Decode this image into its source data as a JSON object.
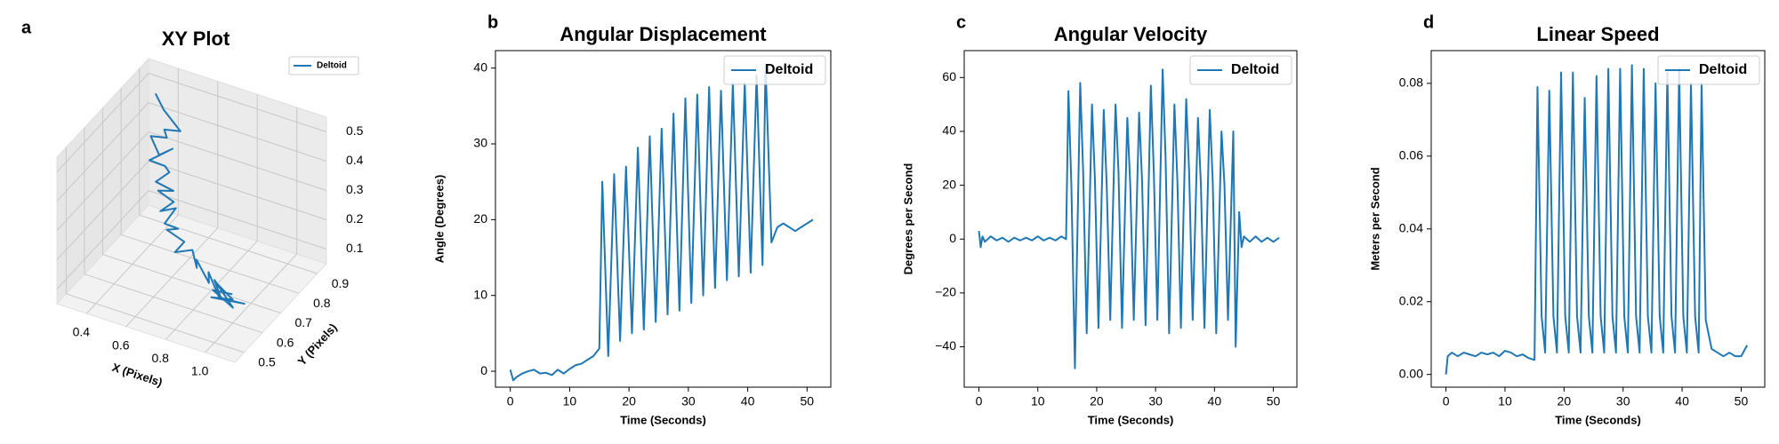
{
  "chart_data": [
    {
      "type": "line3d",
      "panel_label": "a",
      "title": "XY Plot",
      "x_label": "X (Pixels)",
      "y_label": "Y (Pixels)",
      "legend": "upper right",
      "xlim": [
        0.25,
        1.15
      ],
      "ylim": [
        0.45,
        0.95
      ],
      "zlim": [
        0.05,
        0.55
      ],
      "xticks": [
        0.4,
        0.6,
        0.8,
        {
          "value": 1.0,
          "label": "1.0"
        }
      ],
      "yticks": [
        0.5,
        0.6,
        0.7,
        0.8,
        0.9
      ],
      "zticks": [
        0.1,
        0.2,
        0.3,
        0.4,
        0.5
      ],
      "series": [
        {
          "name": "Deltoid",
          "color": "#1f77b4",
          "x": [
            0.35,
            0.42,
            0.55,
            0.45,
            0.5,
            0.4,
            0.48,
            0.52,
            0.44,
            0.5,
            0.55,
            0.5,
            0.58,
            0.53,
            0.6,
            0.56,
            0.62,
            0.6,
            0.65,
            0.62,
            0.7,
            0.68,
            0.75,
            0.8,
            0.78,
            0.88,
            0.85,
            0.95,
            0.9,
            1.0,
            0.92,
            1.05,
            0.95,
            0.88,
            1.02,
            0.9,
            0.98
          ],
          "y": [
            0.88,
            0.85,
            0.8,
            0.82,
            0.78,
            0.8,
            0.76,
            0.79,
            0.75,
            0.77,
            0.74,
            0.72,
            0.73,
            0.7,
            0.71,
            0.68,
            0.7,
            0.66,
            0.68,
            0.65,
            0.66,
            0.63,
            0.65,
            0.62,
            0.64,
            0.6,
            0.63,
            0.58,
            0.62,
            0.6,
            0.57,
            0.61,
            0.59,
            0.63,
            0.58,
            0.6,
            0.62
          ],
          "z": [
            0.5,
            0.48,
            0.47,
            0.44,
            0.45,
            0.42,
            0.4,
            0.41,
            0.38,
            0.36,
            0.37,
            0.34,
            0.32,
            0.33,
            0.3,
            0.28,
            0.29,
            0.26,
            0.24,
            0.25,
            0.22,
            0.2,
            0.21,
            0.18,
            0.19,
            0.16,
            0.17,
            0.14,
            0.15,
            0.13,
            0.14,
            0.12,
            0.13,
            0.15,
            0.12,
            0.14,
            0.13
          ]
        }
      ]
    },
    {
      "type": "line",
      "panel_label": "b",
      "title": "Angular Displacement",
      "x_label": "Time (Seconds)",
      "y_label": "Angle (Degrees)",
      "legend": "upper right",
      "xlim": [
        -2.5,
        54
      ],
      "ylim": [
        -2.1,
        42.3
      ],
      "xticks": [
        0,
        10,
        20,
        30,
        40,
        50
      ],
      "yticks": [
        0,
        10,
        20,
        30,
        40
      ],
      "x": [
        0,
        0.5,
        1,
        2,
        3,
        4,
        5,
        6,
        7,
        8,
        9,
        10,
        11,
        12,
        13,
        14,
        15,
        15.5,
        16.5,
        17.5,
        18.5,
        19.5,
        20.5,
        21.5,
        22.5,
        23.5,
        24.5,
        25.5,
        26.5,
        27.5,
        28.5,
        29.5,
        30.5,
        31.5,
        32.5,
        33.5,
        34.5,
        35.5,
        36.5,
        37.5,
        38.5,
        39.5,
        40.5,
        41.5,
        42.5,
        43,
        44,
        45,
        46,
        47,
        48,
        49,
        50,
        51
      ],
      "series": [
        {
          "name": "Deltoid",
          "color": "#1f77b4",
          "values": [
            0.2,
            -1.2,
            -0.8,
            -0.3,
            0,
            0.2,
            -0.3,
            -0.2,
            -0.5,
            0.2,
            -0.3,
            0.3,
            0.8,
            1,
            1.5,
            2,
            3,
            25,
            2,
            26,
            4,
            27,
            5,
            29.5,
            5.5,
            31,
            6.5,
            32,
            7.5,
            34,
            8,
            36,
            9,
            36.5,
            10,
            37.5,
            11,
            37,
            12,
            38,
            12.5,
            38,
            13,
            39,
            14,
            40.5,
            17,
            19,
            19.5,
            19,
            18.5,
            19,
            19.5,
            20
          ]
        }
      ]
    },
    {
      "type": "line",
      "panel_label": "c",
      "title": "Angular Velocity",
      "x_label": "Time (Seconds)",
      "y_label": "Degrees per Second",
      "legend": "upper right",
      "xlim": [
        -2.5,
        54
      ],
      "ylim": [
        -55,
        70
      ],
      "xticks": [
        0,
        10,
        20,
        30,
        40,
        50
      ],
      "yticks": [
        {
          "value": -40,
          "label": "−40"
        },
        {
          "value": -20,
          "label": "−20"
        },
        0,
        20,
        40,
        60
      ],
      "x": [
        0,
        0.3,
        0.6,
        1,
        2,
        3,
        4,
        5,
        6,
        7,
        8,
        9,
        10,
        11,
        12,
        13,
        14,
        14.8,
        15.2,
        15.7,
        16.3,
        17.2,
        17.7,
        18.3,
        19.2,
        19.7,
        20.3,
        21.2,
        21.7,
        22.3,
        23.2,
        23.7,
        24.3,
        25.2,
        25.7,
        26.3,
        27.2,
        27.7,
        28.3,
        29.2,
        29.7,
        30.3,
        31.2,
        31.7,
        32.3,
        33.2,
        33.7,
        34.3,
        35.2,
        35.7,
        36.3,
        37.2,
        37.7,
        38.3,
        39.2,
        39.7,
        40.3,
        41.2,
        41.7,
        42.3,
        43.2,
        43.6,
        44.2,
        44.6,
        45,
        46,
        47,
        48,
        49,
        50,
        51
      ],
      "series": [
        {
          "name": "Deltoid",
          "color": "#1f77b4",
          "values": [
            3,
            -3,
            1,
            -1,
            1,
            -0.5,
            0.5,
            -1,
            0.5,
            -0.5,
            0.5,
            -0.5,
            1,
            -0.5,
            0.5,
            -0.5,
            1,
            0,
            55,
            20,
            -48,
            58,
            25,
            -35,
            50,
            22,
            -33,
            48,
            20,
            -30,
            50,
            25,
            -33,
            45,
            20,
            -30,
            47,
            22,
            -32,
            57,
            25,
            -30,
            63,
            30,
            -35,
            50,
            22,
            -33,
            52,
            25,
            -30,
            45,
            20,
            -33,
            48,
            22,
            -35,
            40,
            20,
            -30,
            40,
            -40,
            10,
            -3,
            1,
            -1,
            1,
            -1,
            0.5,
            -1,
            0.5
          ]
        }
      ]
    },
    {
      "type": "line",
      "panel_label": "d",
      "title": "Linear Speed",
      "x_label": "Time (Seconds)",
      "y_label": "Meters per Second",
      "legend": "upper right",
      "xlim": [
        -2.5,
        54
      ],
      "ylim": [
        -0.0035,
        0.089
      ],
      "xticks": [
        0,
        10,
        20,
        30,
        40,
        50
      ],
      "yticks": [
        {
          "value": 0,
          "label": "0.00"
        },
        0.02,
        0.04,
        0.06,
        0.08
      ],
      "x": [
        0,
        0.3,
        1,
        2,
        3,
        4,
        5,
        6,
        7,
        8,
        9,
        10,
        11,
        12,
        13,
        14,
        15,
        15.5,
        16.2,
        16.8,
        17.5,
        18.2,
        18.8,
        19.5,
        20.2,
        20.8,
        21.5,
        22.2,
        22.8,
        23.5,
        24.2,
        24.8,
        25.5,
        26.2,
        26.8,
        27.5,
        28.2,
        28.8,
        29.5,
        30.2,
        30.8,
        31.5,
        32.2,
        32.8,
        33.5,
        34.2,
        34.8,
        35.5,
        36.2,
        36.8,
        37.5,
        38.2,
        38.8,
        39.5,
        40.2,
        40.8,
        41.5,
        42.2,
        42.8,
        43.3,
        44,
        45,
        46,
        47,
        48,
        49,
        50,
        51
      ],
      "series": [
        {
          "name": "Deltoid",
          "color": "#1f77b4",
          "values": [
            0,
            0.005,
            0.006,
            0.005,
            0.006,
            0.0055,
            0.005,
            0.006,
            0.0055,
            0.006,
            0.005,
            0.0065,
            0.006,
            0.005,
            0.0055,
            0.0045,
            0.004,
            0.079,
            0.016,
            0.006,
            0.078,
            0.016,
            0.006,
            0.083,
            0.016,
            0.006,
            0.083,
            0.016,
            0.006,
            0.076,
            0.016,
            0.006,
            0.082,
            0.016,
            0.006,
            0.084,
            0.016,
            0.006,
            0.084,
            0.016,
            0.006,
            0.085,
            0.016,
            0.006,
            0.084,
            0.016,
            0.006,
            0.08,
            0.016,
            0.006,
            0.083,
            0.016,
            0.006,
            0.084,
            0.016,
            0.006,
            0.08,
            0.016,
            0.006,
            0.08,
            0.015,
            0.007,
            0.006,
            0.005,
            0.006,
            0.005,
            0.005,
            0.008
          ]
        }
      ]
    }
  ]
}
